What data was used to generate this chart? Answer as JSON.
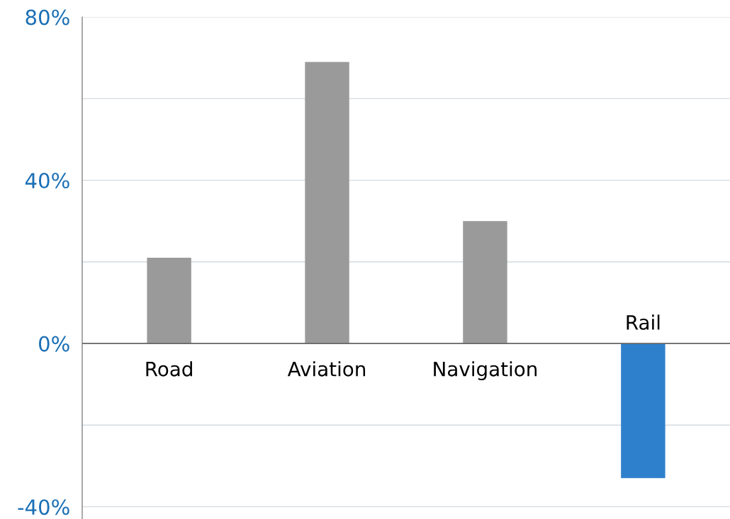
{
  "chart_data": {
    "type": "bar",
    "categories": [
      "Road",
      "Aviation",
      "Navigation",
      "Rail"
    ],
    "values": [
      21,
      69,
      30,
      -33
    ],
    "colors": [
      "#9a9a9a",
      "#9a9a9a",
      "#9a9a9a",
      "#2f80cc"
    ],
    "ylim": [
      -43,
      80
    ],
    "yticks": [
      {
        "value": -40,
        "label": "-40%"
      },
      {
        "value": -20,
        "label": null
      },
      {
        "value": 0,
        "label": "0%"
      },
      {
        "value": 20,
        "label": null
      },
      {
        "value": 40,
        "label": "40%"
      },
      {
        "value": 60,
        "label": null
      },
      {
        "value": 80,
        "label": "80%"
      }
    ],
    "grid": "y"
  }
}
